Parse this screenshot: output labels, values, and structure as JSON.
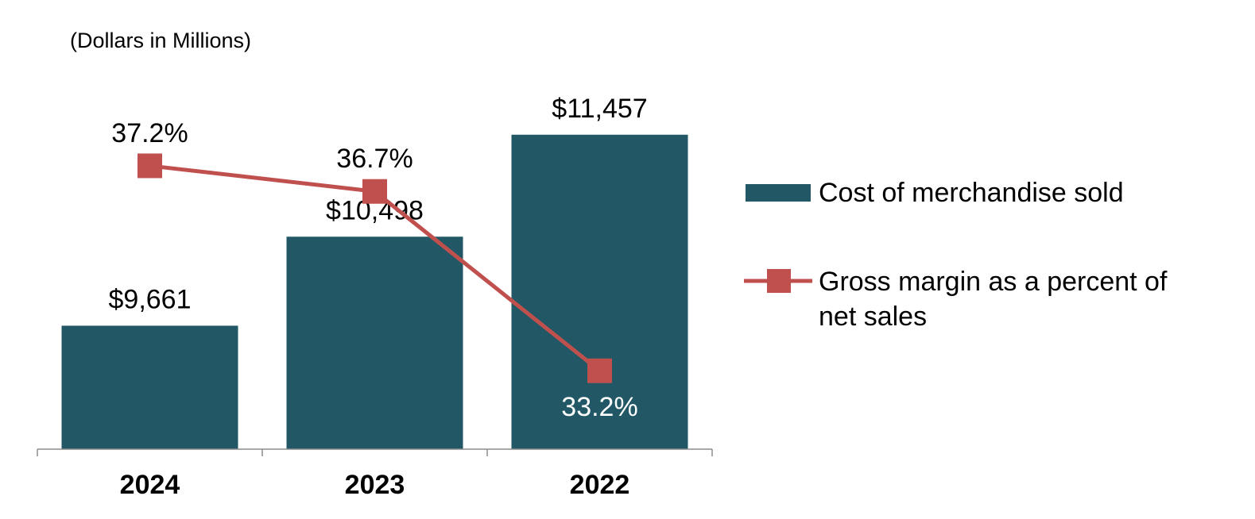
{
  "chart_data": {
    "type": "bar+line",
    "unit_label": "(Dollars in Millions)",
    "categories": [
      "2024",
      "2023",
      "2022"
    ],
    "series": [
      {
        "name": "Cost of merchandise sold",
        "kind": "bar",
        "values": [
          9661,
          10498,
          11457
        ],
        "labels": [
          "$9,661",
          "$10,498",
          "$11,457"
        ],
        "color": "#225866"
      },
      {
        "name": "Gross margin as a percent of net sales",
        "kind": "line",
        "marker": "square",
        "values": [
          37.2,
          36.7,
          33.2
        ],
        "labels": [
          "37.2%",
          "36.7%",
          "33.2%"
        ],
        "color": "#c0504d"
      }
    ],
    "legend": {
      "position": "right",
      "items": [
        {
          "label": "Cost of merchandise sold"
        },
        {
          "label_lines": [
            "Gross margin as a percent of",
            "net sales"
          ]
        }
      ]
    },
    "bar_axis_range": [
      8500,
      12000
    ],
    "line_axis_range": [
      31.5,
      38.5
    ],
    "label_colors": {
      "dark": "#000000",
      "on_bar": "#ffffff"
    },
    "axis_color": "#8c8c8c"
  }
}
